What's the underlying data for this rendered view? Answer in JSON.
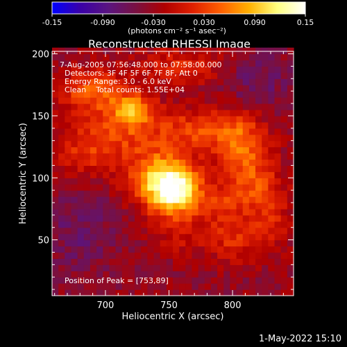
{
  "colorbar": {
    "ticks": [
      "-0.15",
      "-0.090",
      "-0.030",
      "0.030",
      "0.090",
      "0.15"
    ],
    "units": "(photons cm⁻² s⁻¹ asec⁻²)",
    "range": [
      -0.15,
      0.15
    ],
    "colormap": [
      "#0000ff",
      "#3a00a8",
      "#5a1480",
      "#7a1040",
      "#b00000",
      "#e02000",
      "#ff6000",
      "#ffb000",
      "#ffff80",
      "#ffffff"
    ]
  },
  "chart_data": {
    "type": "heatmap",
    "title": "Reconstructed RHESSI Image",
    "xlabel": "Heliocentric X (arcsec)",
    "ylabel": "Heliocentric Y (arcsec)",
    "xlim": [
      658,
      848
    ],
    "ylim": [
      5,
      202
    ],
    "x_ticks": [
      700,
      750,
      800
    ],
    "y_ticks": [
      50,
      100,
      150,
      200
    ],
    "annotations": [
      "7-Aug-2005 07:56:48.000 to 07:58:00.000",
      "Detectors: 3F 4F 5F 6F 7F 8F, Att 0",
      "Energy Range: 3.0 - 6.0 keV",
      "Clean    Total counts: 1.55E+04",
      "Position of Peak = [753,89]"
    ],
    "peak": {
      "x": 753,
      "y": 89
    },
    "features": [
      {
        "x": 753,
        "y": 90,
        "amp": 0.16,
        "sx": 14,
        "sy": 14
      },
      {
        "x": 740,
        "y": 105,
        "amp": 0.08,
        "sx": 20,
        "sy": 18
      },
      {
        "x": 722,
        "y": 155,
        "amp": 0.1,
        "sx": 12,
        "sy": 10
      },
      {
        "x": 690,
        "y": 170,
        "amp": 0.08,
        "sx": 18,
        "sy": 12
      },
      {
        "x": 700,
        "y": 135,
        "amp": 0.06,
        "sx": 20,
        "sy": 14
      },
      {
        "x": 680,
        "y": 115,
        "amp": 0.04,
        "sx": 16,
        "sy": 12
      },
      {
        "x": 770,
        "y": 140,
        "amp": 0.06,
        "sx": 25,
        "sy": 12
      },
      {
        "x": 805,
        "y": 130,
        "amp": 0.07,
        "sx": 15,
        "sy": 15
      },
      {
        "x": 815,
        "y": 100,
        "amp": 0.06,
        "sx": 14,
        "sy": 18
      },
      {
        "x": 790,
        "y": 80,
        "amp": 0.05,
        "sx": 16,
        "sy": 12
      },
      {
        "x": 800,
        "y": 50,
        "amp": 0.05,
        "sx": 15,
        "sy": 12
      },
      {
        "x": 830,
        "y": 70,
        "amp": 0.04,
        "sx": 12,
        "sy": 20
      },
      {
        "x": 760,
        "y": 190,
        "amp": 0.05,
        "sx": 25,
        "sy": 10
      },
      {
        "x": 760,
        "y": 55,
        "amp": 0.03,
        "sx": 14,
        "sy": 12
      },
      {
        "x": 680,
        "y": 60,
        "amp": -0.03,
        "sx": 20,
        "sy": 25
      },
      {
        "x": 820,
        "y": 180,
        "amp": -0.03,
        "sx": 20,
        "sy": 15
      }
    ],
    "background": -0.035,
    "pixel_size": 5
  },
  "footer": {
    "date": "1-May-2022 15:10"
  }
}
